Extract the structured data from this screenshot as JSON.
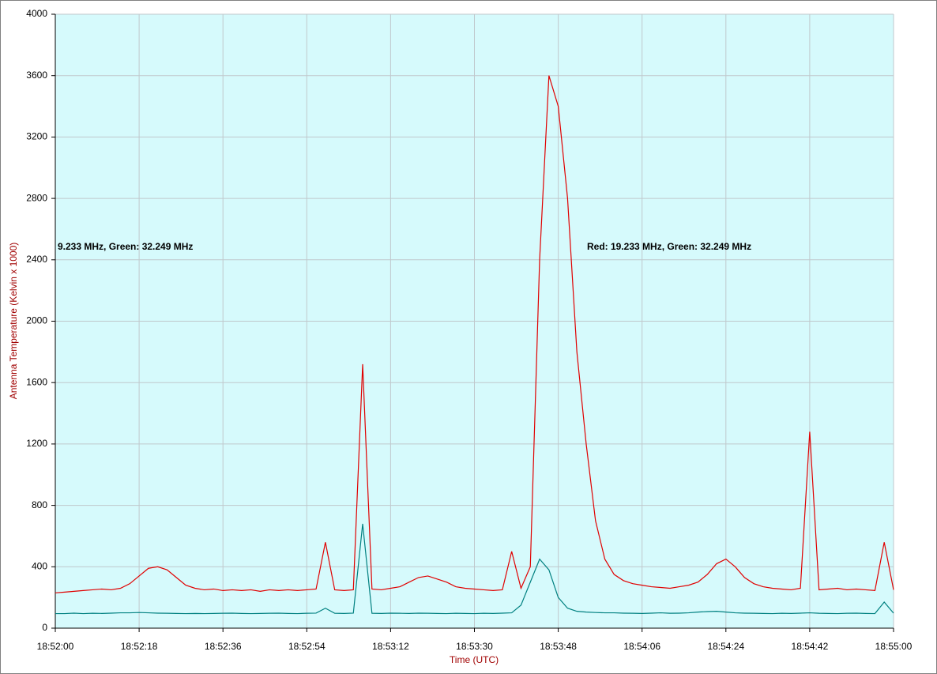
{
  "chart_data": {
    "type": "line",
    "y_label": "Antenna Temperature (Kelvin x 1000)",
    "x_label": "Time (UTC)",
    "annotations": [
      "9.233 MHz, Green: 32.249 MHz",
      "Red: 19.233 MHz, Green: 32.249 MHz"
    ],
    "x": [
      "18:52:00",
      "18:52:02",
      "18:52:04",
      "18:52:06",
      "18:52:08",
      "18:52:10",
      "18:52:12",
      "18:52:14",
      "18:52:16",
      "18:52:18",
      "18:52:20",
      "18:52:22",
      "18:52:24",
      "18:52:26",
      "18:52:28",
      "18:52:30",
      "18:52:32",
      "18:52:34",
      "18:52:36",
      "18:52:38",
      "18:52:40",
      "18:52:42",
      "18:52:44",
      "18:52:46",
      "18:52:48",
      "18:52:50",
      "18:52:52",
      "18:52:54",
      "18:52:56",
      "18:52:58",
      "18:53:00",
      "18:53:02",
      "18:53:04",
      "18:53:06",
      "18:53:08",
      "18:53:10",
      "18:53:12",
      "18:53:14",
      "18:53:16",
      "18:53:18",
      "18:53:20",
      "18:53:22",
      "18:53:24",
      "18:53:26",
      "18:53:28",
      "18:53:30",
      "18:53:32",
      "18:53:34",
      "18:53:36",
      "18:53:38",
      "18:53:40",
      "18:53:42",
      "18:53:44",
      "18:53:46",
      "18:53:48",
      "18:53:50",
      "18:53:52",
      "18:53:54",
      "18:53:56",
      "18:53:58",
      "18:54:00",
      "18:54:02",
      "18:54:04",
      "18:54:06",
      "18:54:08",
      "18:54:10",
      "18:54:12",
      "18:54:14",
      "18:54:16",
      "18:54:18",
      "18:54:20",
      "18:54:22",
      "18:54:24",
      "18:54:26",
      "18:54:28",
      "18:54:30",
      "18:54:32",
      "18:54:34",
      "18:54:36",
      "18:54:38",
      "18:54:40",
      "18:54:42",
      "18:54:44",
      "18:54:46",
      "18:54:48",
      "18:54:50",
      "18:54:52",
      "18:54:54",
      "18:54:56",
      "18:54:58",
      "18:55:00"
    ],
    "series": [
      {
        "color": "#e00000",
        "values": [
          230,
          235,
          240,
          245,
          250,
          255,
          250,
          260,
          290,
          340,
          390,
          400,
          380,
          330,
          280,
          260,
          250,
          255,
          245,
          250,
          245,
          250,
          240,
          250,
          245,
          250,
          245,
          250,
          255,
          560,
          250,
          245,
          250,
          1720,
          255,
          250,
          260,
          270,
          300,
          330,
          340,
          320,
          300,
          270,
          260,
          255,
          250,
          245,
          250,
          500,
          260,
          400,
          2400,
          3600,
          3400,
          2800,
          1800,
          1200,
          700,
          450,
          350,
          310,
          290,
          280,
          270,
          265,
          260,
          270,
          280,
          300,
          350,
          420,
          450,
          400,
          330,
          290,
          270,
          260,
          255,
          250,
          260,
          1280,
          250,
          255,
          260,
          250,
          255,
          250,
          245,
          560,
          250
        ]
      },
      {
        "color": "#008080",
        "values": [
          95,
          95,
          98,
          95,
          97,
          96,
          98,
          100,
          100,
          102,
          100,
          98,
          97,
          96,
          95,
          96,
          95,
          96,
          97,
          98,
          96,
          95,
          96,
          97,
          98,
          96,
          95,
          97,
          98,
          130,
          97,
          96,
          98,
          680,
          97,
          96,
          98,
          97,
          96,
          98,
          97,
          96,
          95,
          97,
          96,
          95,
          97,
          96,
          98,
          100,
          150,
          300,
          450,
          380,
          200,
          130,
          110,
          105,
          102,
          100,
          100,
          98,
          97,
          96,
          98,
          100,
          97,
          98,
          100,
          105,
          108,
          110,
          105,
          100,
          98,
          97,
          96,
          95,
          97,
          96,
          98,
          100,
          97,
          96,
          95,
          97,
          98,
          96,
          95,
          170,
          98
        ]
      }
    ],
    "xlim": [
      "18:52:00",
      "18:55:00"
    ],
    "xticks": [
      "18:52:00",
      "18:52:18",
      "18:52:36",
      "18:52:54",
      "18:53:12",
      "18:53:30",
      "18:53:48",
      "18:54:06",
      "18:54:24",
      "18:54:42",
      "18:55:00"
    ],
    "ylim": [
      0,
      4000
    ],
    "yticks": [
      0,
      400,
      800,
      1200,
      1600,
      2000,
      2400,
      2800,
      3200,
      3600,
      4000
    ],
    "grid": true
  }
}
